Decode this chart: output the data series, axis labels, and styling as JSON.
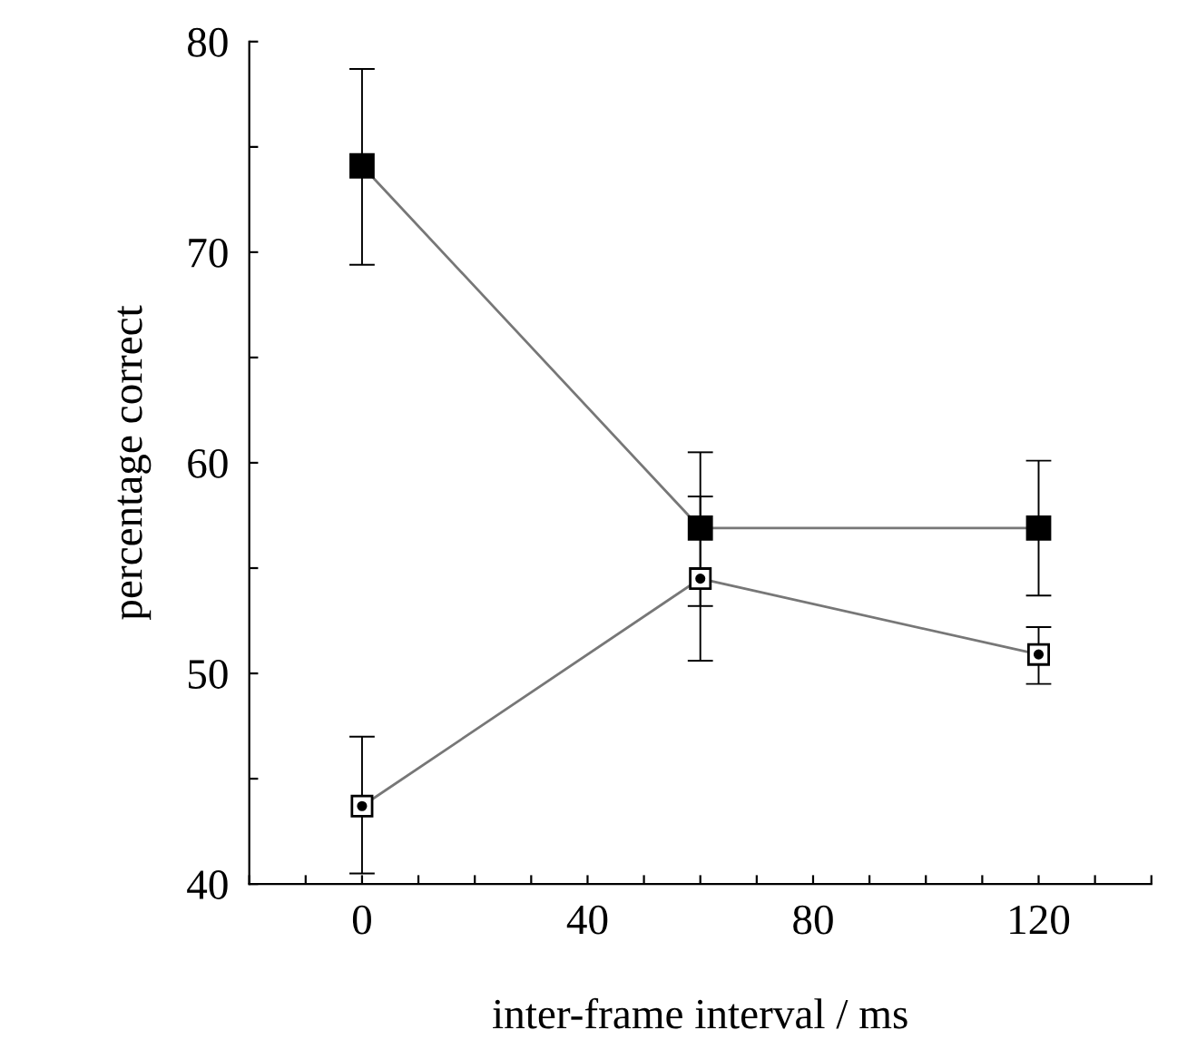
{
  "chart_data": {
    "type": "line",
    "xlabel": "inter-frame interval / ms",
    "ylabel": "percentage correct",
    "x": [
      0,
      60,
      120
    ],
    "series": [
      {
        "color": "#000000",
        "values": [
          74.1,
          56.9,
          56.9
        ],
        "errors": [
          [
            69.4,
            78.7
          ],
          [
            53.2,
            60.5
          ],
          [
            53.7,
            60.1
          ]
        ]
      },
      {
        "color": "#000000",
        "values": [
          43.7,
          54.5,
          50.9
        ],
        "errors": [
          [
            40.5,
            47.0
          ],
          [
            50.6,
            58.4
          ],
          [
            49.5,
            52.2
          ]
        ]
      }
    ],
    "xlim": [
      -20,
      140
    ],
    "xticks": [
      {
        "value": -20,
        "label": null
      },
      {
        "value": -10,
        "label": null
      },
      0,
      {
        "value": 10,
        "label": null
      },
      {
        "value": 20,
        "label": null
      },
      {
        "value": 30,
        "label": null
      },
      40,
      {
        "value": 50,
        "label": null
      },
      {
        "value": 60,
        "label": null
      },
      {
        "value": 70,
        "label": null
      },
      80,
      {
        "value": 90,
        "label": null
      },
      {
        "value": 100,
        "label": null
      },
      {
        "value": 110,
        "label": null
      },
      120,
      {
        "value": 130,
        "label": null
      },
      {
        "value": 140,
        "label": null
      }
    ],
    "ylim": [
      40,
      80
    ],
    "yticks": [
      40,
      {
        "value": 45,
        "label": null
      },
      50,
      {
        "value": 55,
        "label": null
      },
      60,
      {
        "value": 65,
        "label": null
      },
      70,
      {
        "value": 75,
        "label": null
      },
      80
    ],
    "marker": "square",
    "line_style": "solid",
    "grid": false,
    "legend": false
  }
}
